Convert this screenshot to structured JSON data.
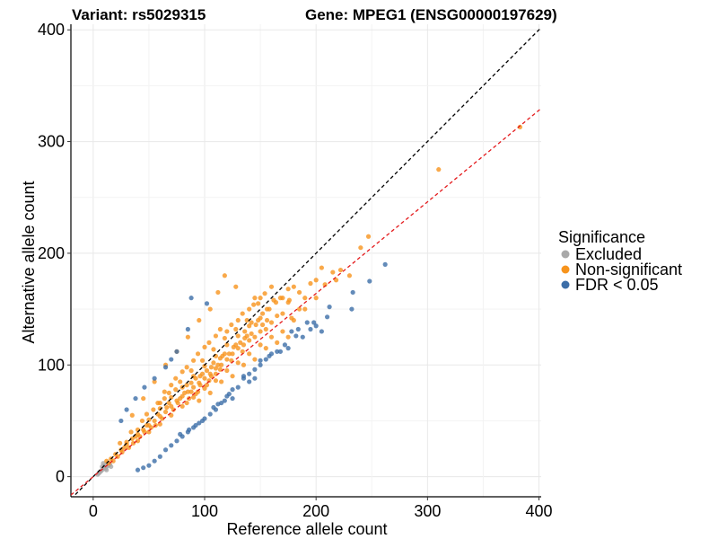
{
  "chart_data": {
    "type": "scatter",
    "title_left": "Variant: rs5029315",
    "title_right": "Gene: MPEG1 (ENSG00000197629)",
    "xlabel": "Reference allele count",
    "ylabel": "Alternative allele count",
    "xlim": [
      -20,
      402
    ],
    "ylim": [
      -18,
      405
    ],
    "x_ticks": [
      0,
      100,
      200,
      300,
      400
    ],
    "y_ticks": [
      0,
      100,
      200,
      300,
      400
    ],
    "grid": true,
    "legend": {
      "title": "Significance",
      "placement": "right",
      "entries": [
        {
          "label": "Excluded",
          "color": "#A9A9A9"
        },
        {
          "label": "Non-significant",
          "color": "#F7941D"
        },
        {
          "label": "FDR < 0.05",
          "color": "#3C6EA8"
        }
      ]
    },
    "reference_lines": [
      {
        "name": "identity",
        "slope": 1,
        "intercept": 0,
        "color": "#000000",
        "dash": true
      },
      {
        "name": "fit",
        "slope": 0.82,
        "intercept": 0,
        "color": "#E41A1C",
        "dash": true
      }
    ],
    "series": [
      {
        "name": "Excluded",
        "color": "#A9A9A9",
        "points": [
          [
            5,
            3
          ],
          [
            7,
            5
          ],
          [
            8,
            6
          ],
          [
            10,
            8
          ],
          [
            12,
            9
          ],
          [
            14,
            10
          ],
          [
            9,
            12
          ],
          [
            11,
            7
          ],
          [
            6,
            4
          ],
          [
            13,
            12
          ],
          [
            15,
            11
          ],
          [
            10,
            10
          ],
          [
            8,
            9
          ],
          [
            16,
            9
          ],
          [
            12,
            6
          ],
          [
            4,
            2
          ]
        ]
      },
      {
        "name": "Non-significant",
        "color": "#F7941D",
        "points": [
          [
            383,
            313
          ],
          [
            310,
            275
          ],
          [
            247,
            215
          ],
          [
            240,
            205
          ],
          [
            205,
            187
          ],
          [
            215,
            183
          ],
          [
            222,
            185
          ],
          [
            230,
            180
          ],
          [
            200,
            176
          ],
          [
            195,
            173
          ],
          [
            218,
            176
          ],
          [
            208,
            172
          ],
          [
            170,
            146
          ],
          [
            175,
            156
          ],
          [
            185,
            150
          ],
          [
            178,
            142
          ],
          [
            165,
            144
          ],
          [
            160,
            138
          ],
          [
            155,
            132
          ],
          [
            150,
            130
          ],
          [
            145,
            125
          ],
          [
            140,
            122
          ],
          [
            135,
            118
          ],
          [
            130,
            115
          ],
          [
            125,
            110
          ],
          [
            120,
            105
          ],
          [
            115,
            100
          ],
          [
            110,
            97
          ],
          [
            105,
            92
          ],
          [
            100,
            88
          ],
          [
            95,
            84
          ],
          [
            90,
            80
          ],
          [
            85,
            76
          ],
          [
            80,
            72
          ],
          [
            75,
            68
          ],
          [
            70,
            63
          ],
          [
            65,
            58
          ],
          [
            60,
            54
          ],
          [
            55,
            50
          ],
          [
            50,
            46
          ],
          [
            45,
            42
          ],
          [
            40,
            38
          ],
          [
            35,
            34
          ],
          [
            30,
            29
          ],
          [
            25,
            24
          ],
          [
            20,
            20
          ],
          [
            150,
            142
          ],
          [
            140,
            135
          ],
          [
            130,
            126
          ],
          [
            120,
            118
          ],
          [
            110,
            108
          ],
          [
            100,
            99
          ],
          [
            90,
            90
          ],
          [
            80,
            80
          ],
          [
            70,
            71
          ],
          [
            60,
            61
          ],
          [
            50,
            51
          ],
          [
            40,
            42
          ],
          [
            30,
            31
          ],
          [
            160,
            125
          ],
          [
            150,
            118
          ],
          [
            140,
            110
          ],
          [
            130,
            102
          ],
          [
            120,
            95
          ],
          [
            110,
            86
          ],
          [
            100,
            79
          ],
          [
            90,
            71
          ],
          [
            80,
            63
          ],
          [
            70,
            55
          ],
          [
            60,
            47
          ],
          [
            50,
            40
          ],
          [
            40,
            32
          ],
          [
            158,
            150
          ],
          [
            148,
            155
          ],
          [
            138,
            140
          ],
          [
            128,
            132
          ],
          [
            118,
            124
          ],
          [
            108,
            114
          ],
          [
            98,
            104
          ],
          [
            88,
            95
          ],
          [
            78,
            85
          ],
          [
            68,
            75
          ],
          [
            58,
            66
          ],
          [
            48,
            56
          ],
          [
            145,
            160
          ],
          [
            128,
            170
          ],
          [
            118,
            180
          ],
          [
            112,
            165
          ],
          [
            105,
            150
          ],
          [
            95,
            140
          ],
          [
            85,
            125
          ],
          [
            75,
            112
          ],
          [
            65,
            100
          ],
          [
            55,
            85
          ],
          [
            45,
            70
          ],
          [
            35,
            55
          ],
          [
            170,
            130
          ],
          [
            180,
            140
          ],
          [
            190,
            150
          ],
          [
            175,
            125
          ],
          [
            165,
            120
          ],
          [
            155,
            115
          ],
          [
            145,
            105
          ],
          [
            135,
            100
          ],
          [
            125,
            90
          ],
          [
            115,
            85
          ],
          [
            105,
            75
          ],
          [
            95,
            68
          ],
          [
            200,
            160
          ],
          [
            190,
            160
          ],
          [
            185,
            165
          ],
          [
            180,
            170
          ],
          [
            175,
            168
          ],
          [
            168,
            160
          ],
          [
            162,
            158
          ],
          [
            156,
            150
          ],
          [
            152,
            146
          ],
          [
            148,
            140
          ],
          [
            142,
            138
          ],
          [
            136,
            130
          ],
          [
            92,
            88
          ],
          [
            96,
            82
          ],
          [
            88,
            76
          ],
          [
            84,
            82
          ],
          [
            78,
            70
          ],
          [
            74,
            78
          ],
          [
            68,
            66
          ],
          [
            64,
            70
          ],
          [
            58,
            56
          ],
          [
            54,
            60
          ],
          [
            48,
            46
          ],
          [
            44,
            50
          ],
          [
            38,
            36
          ],
          [
            34,
            40
          ],
          [
            28,
            26
          ],
          [
            24,
            30
          ],
          [
            102,
            95
          ],
          [
            106,
            90
          ],
          [
            112,
            100
          ],
          [
            116,
            108
          ],
          [
            122,
            110
          ],
          [
            126,
            116
          ],
          [
            132,
            120
          ],
          [
            136,
            124
          ],
          [
            142,
            128
          ],
          [
            146,
            136
          ],
          [
            152,
            136
          ],
          [
            156,
            140
          ],
          [
            82,
            75
          ],
          [
            86,
            70
          ],
          [
            94,
            76
          ],
          [
            98,
            92
          ],
          [
            104,
            86
          ],
          [
            108,
            102
          ],
          [
            114,
            96
          ],
          [
            118,
            110
          ],
          [
            124,
            104
          ],
          [
            128,
            118
          ],
          [
            134,
            112
          ],
          [
            138,
            126
          ],
          [
            62,
            52
          ],
          [
            66,
            62
          ],
          [
            72,
            60
          ],
          [
            76,
            66
          ],
          [
            84,
            66
          ],
          [
            88,
            84
          ],
          [
            92,
            74
          ],
          [
            96,
            90
          ],
          [
            102,
            82
          ],
          [
            106,
            98
          ],
          [
            110,
            92
          ],
          [
            114,
            106
          ],
          [
            56,
            46
          ],
          [
            52,
            44
          ],
          [
            46,
            40
          ],
          [
            42,
            36
          ],
          [
            36,
            30
          ],
          [
            32,
            26
          ],
          [
            26,
            22
          ],
          [
            22,
            18
          ],
          [
            18,
            14
          ],
          [
            16,
            16
          ],
          [
            14,
            12
          ],
          [
            12,
            14
          ],
          [
            60,
            66
          ],
          [
            64,
            76
          ],
          [
            70,
            82
          ],
          [
            74,
            88
          ],
          [
            80,
            94
          ],
          [
            84,
            98
          ],
          [
            90,
            104
          ],
          [
            94,
            110
          ],
          [
            100,
            116
          ],
          [
            104,
            120
          ],
          [
            110,
            126
          ],
          [
            114,
            132
          ],
          [
            120,
            130
          ],
          [
            124,
            136
          ],
          [
            130,
            140
          ],
          [
            134,
            146
          ],
          [
            140,
            150
          ],
          [
            144,
            154
          ],
          [
            150,
            160
          ],
          [
            154,
            164
          ],
          [
            160,
            170
          ],
          [
            164,
            156
          ],
          [
            170,
            160
          ],
          [
            176,
            158
          ]
        ]
      },
      {
        "name": "FDR < 0.05",
        "color": "#3C6EA8",
        "points": [
          [
            262,
            190
          ],
          [
            248,
            175
          ],
          [
            233,
            165
          ],
          [
            232,
            150
          ],
          [
            210,
            143
          ],
          [
            212,
            152
          ],
          [
            192,
            138
          ],
          [
            184,
            132
          ],
          [
            178,
            130
          ],
          [
            188,
            125
          ],
          [
            198,
            138
          ],
          [
            175,
            115
          ],
          [
            168,
            112
          ],
          [
            160,
            110
          ],
          [
            155,
            105
          ],
          [
            150,
            100
          ],
          [
            145,
            96
          ],
          [
            140,
            92
          ],
          [
            135,
            88
          ],
          [
            130,
            80
          ],
          [
            125,
            78
          ],
          [
            120,
            72
          ],
          [
            115,
            66
          ],
          [
            110,
            60
          ],
          [
            105,
            56
          ],
          [
            100,
            52
          ],
          [
            95,
            48
          ],
          [
            90,
            44
          ],
          [
            85,
            40
          ],
          [
            80,
            36
          ],
          [
            75,
            32
          ],
          [
            70,
            28
          ],
          [
            65,
            24
          ],
          [
            60,
            18
          ],
          [
            55,
            14
          ],
          [
            50,
            10
          ],
          [
            45,
            8
          ],
          [
            40,
            6
          ],
          [
            88,
            160
          ],
          [
            102,
            155
          ],
          [
            85,
            132
          ],
          [
            75,
            112
          ],
          [
            70,
            105
          ],
          [
            65,
            98
          ],
          [
            55,
            88
          ],
          [
            46,
            80
          ],
          [
            38,
            70
          ],
          [
            30,
            60
          ],
          [
            25,
            50
          ],
          [
            145,
            88
          ],
          [
            140,
            85
          ],
          [
            135,
            90
          ],
          [
            125,
            70
          ],
          [
            122,
            74
          ],
          [
            118,
            68
          ],
          [
            112,
            65
          ],
          [
            108,
            62
          ],
          [
            98,
            50
          ],
          [
            92,
            46
          ],
          [
            86,
            42
          ],
          [
            78,
            38
          ],
          [
            200,
            135
          ],
          [
            205,
            130
          ],
          [
            195,
            132
          ],
          [
            182,
            126
          ],
          [
            172,
            118
          ],
          [
            165,
            112
          ],
          [
            158,
            108
          ],
          [
            150,
            104
          ]
        ]
      }
    ]
  }
}
